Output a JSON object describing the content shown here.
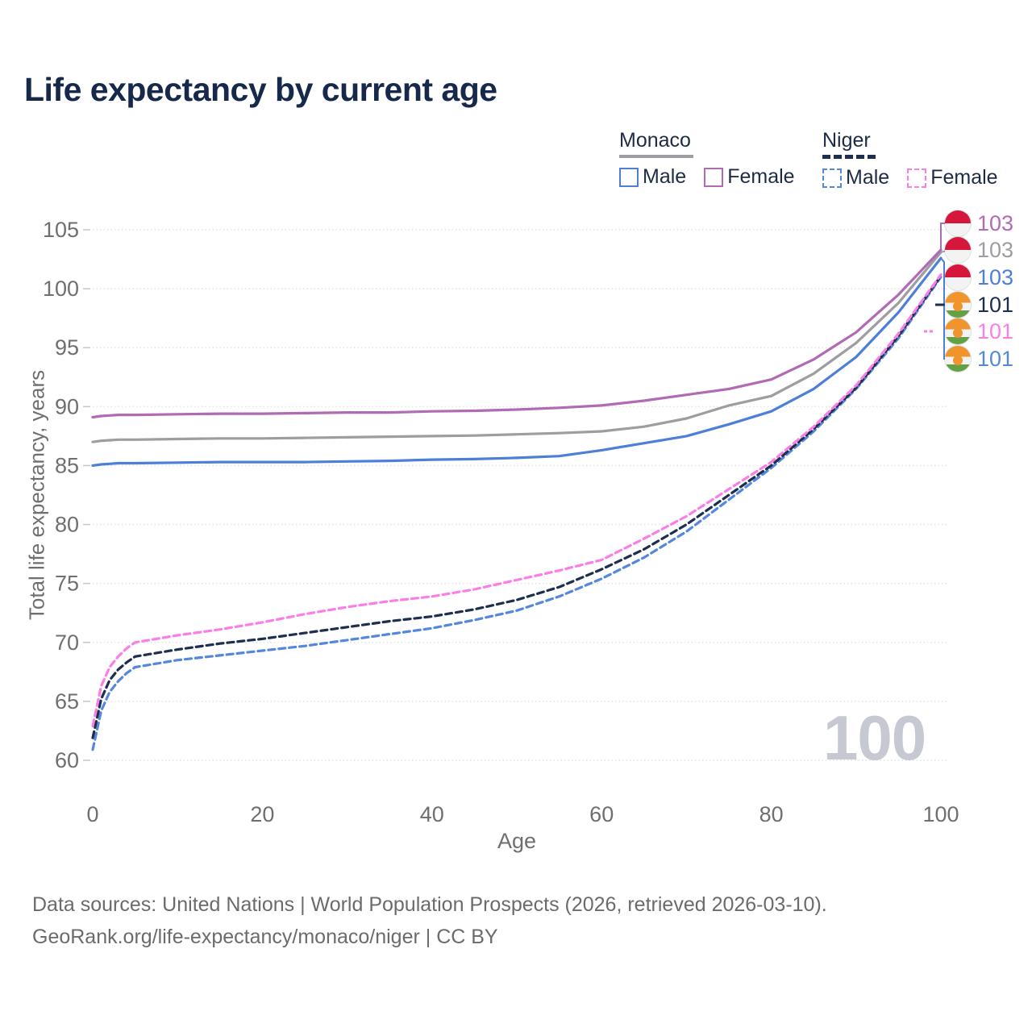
{
  "header": {
    "title": "Life expectancy by current age"
  },
  "legend": {
    "monaco": {
      "title": "Monaco",
      "male": "Male",
      "female": "Female"
    },
    "niger": {
      "title": "Niger",
      "male": "Male",
      "female": "Female"
    }
  },
  "chart_data": {
    "type": "line",
    "title": "Life expectancy by current age",
    "xlabel": "Age",
    "ylabel": "Total life expectancy, years",
    "xlim": [
      0,
      100
    ],
    "ylim": [
      60,
      105
    ],
    "xticks": [
      0,
      20,
      40,
      60,
      80,
      100
    ],
    "yticks": [
      60,
      65,
      70,
      75,
      80,
      85,
      90,
      95,
      100,
      105
    ],
    "grid": "horizontal dotted",
    "legend_position": "top-right",
    "watermark": "100",
    "x": [
      0,
      1,
      2,
      3,
      4,
      5,
      10,
      15,
      20,
      25,
      30,
      35,
      40,
      45,
      50,
      55,
      60,
      65,
      70,
      75,
      80,
      85,
      90,
      95,
      100
    ],
    "series": [
      {
        "name": "Monaco Female",
        "country": "Monaco",
        "sex": "Female",
        "color": "#b16ab4",
        "dashed": false,
        "end_label": "103",
        "values": [
          89.1,
          89.2,
          89.25,
          89.3,
          89.3,
          89.3,
          89.35,
          89.4,
          89.4,
          89.45,
          89.5,
          89.5,
          89.6,
          89.65,
          89.75,
          89.9,
          90.1,
          90.5,
          91.0,
          91.5,
          92.3,
          94.0,
          96.3,
          99.5,
          103.3
        ]
      },
      {
        "name": "Monaco Both sexes",
        "country": "Monaco",
        "sex": "Both",
        "color": "#9d9da2",
        "dashed": false,
        "end_label": "103",
        "values": [
          87.0,
          87.1,
          87.15,
          87.2,
          87.2,
          87.2,
          87.25,
          87.3,
          87.3,
          87.35,
          87.4,
          87.45,
          87.5,
          87.55,
          87.65,
          87.75,
          87.9,
          88.3,
          89.0,
          90.1,
          90.9,
          92.8,
          95.4,
          98.8,
          103.1
        ]
      },
      {
        "name": "Monaco Male",
        "country": "Monaco",
        "sex": "Male",
        "color": "#4d7fd9",
        "dashed": false,
        "end_label": "103",
        "values": [
          85.0,
          85.1,
          85.15,
          85.2,
          85.2,
          85.2,
          85.25,
          85.3,
          85.3,
          85.3,
          85.35,
          85.4,
          85.5,
          85.55,
          85.65,
          85.8,
          86.3,
          86.9,
          87.5,
          88.5,
          89.6,
          91.5,
          94.2,
          98.0,
          102.6
        ]
      },
      {
        "name": "Niger Both sexes",
        "country": "Niger",
        "sex": "Both",
        "color": "#1e2e4e",
        "dashed": true,
        "end_label": "101",
        "values": [
          61.9,
          65.2,
          66.8,
          67.7,
          68.3,
          68.8,
          69.4,
          69.9,
          70.3,
          70.8,
          71.3,
          71.8,
          72.2,
          72.8,
          73.6,
          74.7,
          76.2,
          77.9,
          80.0,
          82.5,
          85.0,
          88.1,
          91.6,
          96.0,
          101.1
        ]
      },
      {
        "name": "Niger Female",
        "country": "Niger",
        "sex": "Female",
        "color": "#fb7ee6",
        "dashed": true,
        "end_label": "101",
        "values": [
          62.9,
          66.3,
          67.9,
          68.8,
          69.5,
          70.0,
          70.6,
          71.1,
          71.7,
          72.4,
          73.0,
          73.5,
          73.9,
          74.5,
          75.3,
          76.1,
          77.0,
          78.8,
          80.7,
          83.0,
          85.3,
          88.3,
          91.8,
          96.2,
          101.2
        ]
      },
      {
        "name": "Niger Male",
        "country": "Niger",
        "sex": "Male",
        "color": "#5587dc",
        "dashed": true,
        "end_label": "101",
        "values": [
          60.9,
          64.2,
          65.8,
          66.7,
          67.4,
          67.9,
          68.5,
          68.9,
          69.3,
          69.7,
          70.2,
          70.7,
          71.2,
          71.9,
          72.7,
          73.9,
          75.4,
          77.2,
          79.4,
          82.1,
          84.8,
          87.9,
          91.5,
          95.8,
          101.0
        ]
      }
    ]
  },
  "footer": {
    "line1": "Data sources: United Nations | World Population Prospects (2026, retrieved 2026-03-10).",
    "line2": "GeoRank.org/life-expectancy/monaco/niger | CC BY"
  }
}
